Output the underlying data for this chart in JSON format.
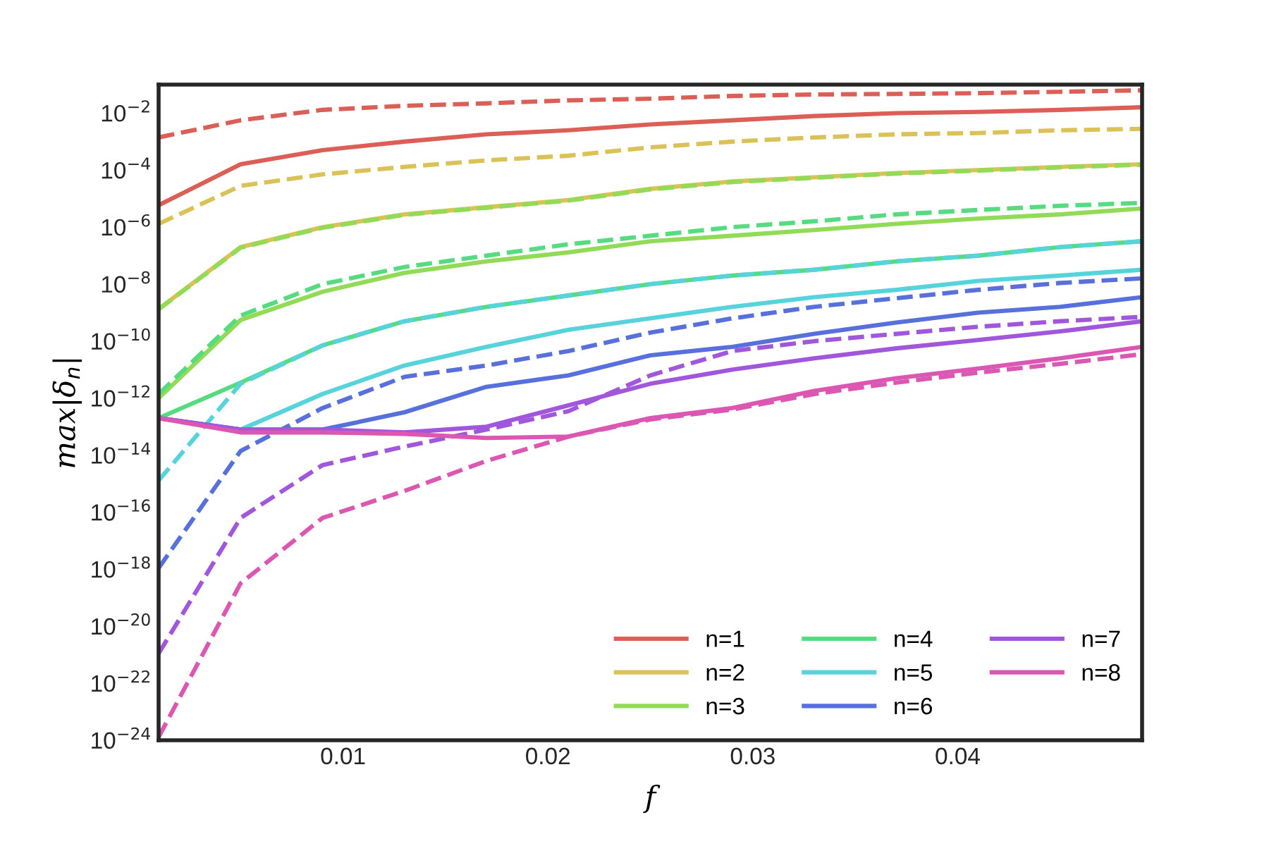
{
  "chart_data": {
    "type": "line",
    "xlabel": "f",
    "ylabel": "max|δ$_{n}$|",
    "log": "y",
    "xlim": [
      0.001,
      0.049
    ],
    "ylim": [
      1e-24,
      0.1
    ],
    "xticks": [
      0.01,
      0.02,
      0.03,
      0.04
    ],
    "yticks": [
      {
        "value": 1e-24,
        "label": "10$^{−24}$"
      },
      {
        "value": 1e-22,
        "label": "10$^{−22}$"
      },
      {
        "value": 1e-20,
        "label": "10$^{−20}$"
      },
      {
        "value": 1e-18,
        "label": "10$^{−18}$"
      },
      {
        "value": 1e-16,
        "label": "10$^{−16}$"
      },
      {
        "value": 1e-14,
        "label": "10$^{−14}$"
      },
      {
        "value": 1e-12,
        "label": "10$^{−12}$"
      },
      {
        "value": 1e-10,
        "label": "10$^{−10}$"
      },
      {
        "value": 1e-08,
        "label": "10$^{−8}$"
      },
      {
        "value": 1e-06,
        "label": "10$^{−6}$"
      },
      {
        "value": 0.0001,
        "label": "10$^{−4}$"
      },
      {
        "value": 0.01,
        "label": "10$^{−2}$"
      }
    ],
    "x": [
      0.001,
      0.005,
      0.009,
      0.013,
      0.017,
      0.021,
      0.025,
      0.029,
      0.033,
      0.037,
      0.041,
      0.045,
      0.049
    ],
    "grid": false,
    "legend": "bottom right",
    "marker": "none",
    "series": [
      {
        "name": "n=1",
        "color": "#db5f57",
        "line_style": "solid",
        "values": [
          5.9e-06,
          0.00016,
          0.0005,
          0.001,
          0.0018,
          0.0025,
          0.004,
          0.0056,
          0.0079,
          0.01,
          0.011,
          0.013,
          0.016
        ]
      },
      {
        "color": "#db5f57",
        "line_style": "dashed",
        "values": [
          0.0014,
          0.0056,
          0.013,
          0.018,
          0.022,
          0.028,
          0.032,
          0.04,
          0.045,
          0.047,
          0.05,
          0.056,
          0.063
        ]
      },
      {
        "name": "n=2",
        "color": "#dbc257",
        "line_style": "solid",
        "values": [
          1.35e-09,
          2e-07,
          1e-06,
          2.8e-06,
          5e-06,
          8.9e-06,
          2.2e-05,
          4e-05,
          5.6e-05,
          7.9e-05,
          0.0001,
          0.00013,
          0.00016
        ]
      },
      {
        "color": "#dbc257",
        "line_style": "dashed",
        "values": [
          1.3e-06,
          2.8e-05,
          7.1e-05,
          0.00013,
          0.00022,
          0.00032,
          0.00063,
          0.001,
          0.0014,
          0.0018,
          0.002,
          0.0025,
          0.0028
        ]
      },
      {
        "name": "n=3",
        "color": "#91db57",
        "line_style": "solid",
        "values": [
          1e-12,
          5.5e-10,
          5.4e-09,
          2.5e-08,
          6.3e-08,
          1.3e-07,
          3.2e-07,
          5e-07,
          7.9e-07,
          1.3e-06,
          2e-06,
          2.8e-06,
          4.5e-06
        ]
      },
      {
        "color": "#91db57",
        "line_style": "dashed",
        "values": [
          1.3e-09,
          1.9e-07,
          9.5e-07,
          2.7e-06,
          4.8e-06,
          8.5e-06,
          2.1e-05,
          3.8e-05,
          5.4e-05,
          7.6e-05,
          9.6e-05,
          0.000125,
          0.000155
        ]
      },
      {
        "name": "n=4",
        "color": "#57db80",
        "line_style": "solid",
        "values": [
          2e-13,
          3.5e-12,
          7.1e-11,
          5e-10,
          1.6e-09,
          4e-09,
          1e-08,
          2e-08,
          3.2e-08,
          6.3e-08,
          1e-07,
          2e-07,
          3.2e-07
        ]
      },
      {
        "color": "#57db80",
        "line_style": "dashed",
        "values": [
          1.4e-12,
          7.9e-10,
          1e-08,
          4e-08,
          1e-07,
          2.5e-07,
          5e-07,
          1e-06,
          1.6e-06,
          2.8e-06,
          4e-06,
          5.6e-06,
          7.1e-06
        ]
      },
      {
        "name": "n=5",
        "color": "#57d3db",
        "line_style": "solid",
        "values": [
          2e-13,
          7.9e-14,
          1.4e-12,
          1.4e-11,
          6.3e-11,
          2.5e-10,
          6.3e-10,
          1.6e-09,
          3.5e-09,
          6.3e-09,
          1.3e-08,
          2e-08,
          3.2e-08
        ]
      },
      {
        "color": "#57d3db",
        "line_style": "dashed",
        "values": [
          1.3e-15,
          3.2e-12,
          7.1e-11,
          5e-10,
          1.6e-09,
          4e-09,
          1e-08,
          2e-08,
          3.2e-08,
          6.3e-08,
          1e-07,
          2e-07,
          3.2e-07
        ]
      },
      {
        "name": "n=6",
        "color": "#5770db",
        "line_style": "solid",
        "values": [
          2e-13,
          7.9e-14,
          7.9e-14,
          3.2e-13,
          2.5e-12,
          6.3e-12,
          3.2e-11,
          6.3e-11,
          1.8e-10,
          4.5e-10,
          1e-09,
          1.6e-09,
          3.5e-09
        ]
      },
      {
        "color": "#5770db",
        "line_style": "dashed",
        "values": [
          1.1e-18,
          1.4e-14,
          4.5e-13,
          5.6e-12,
          1.4e-11,
          4.5e-11,
          2e-10,
          6.3e-10,
          1.6e-09,
          3.2e-09,
          6.3e-09,
          1.1e-08,
          1.6e-08
        ]
      },
      {
        "name": "n=7",
        "color": "#a157db",
        "line_style": "solid",
        "values": [
          2e-13,
          7.9e-14,
          7.9e-14,
          6.3e-14,
          1e-13,
          5.6e-13,
          3.2e-12,
          1e-11,
          2.5e-11,
          5.6e-11,
          1.1e-10,
          2.2e-10,
          5e-10
        ]
      },
      {
        "color": "#a157db",
        "line_style": "dashed",
        "values": [
          1.1e-21,
          6.3e-17,
          4.5e-15,
          2e-14,
          7.9e-14,
          3.5e-13,
          6.3e-12,
          4.5e-11,
          1e-10,
          1.8e-10,
          3.2e-10,
          5e-10,
          7.1e-10
        ]
      },
      {
        "name": "n=8",
        "color": "#db57b2",
        "line_style": "solid",
        "values": [
          2e-13,
          6.3e-14,
          6.3e-14,
          5.6e-14,
          4e-14,
          4.5e-14,
          2e-13,
          4.5e-13,
          1.8e-12,
          5e-12,
          1.1e-11,
          2.5e-11,
          6.3e-11
        ]
      },
      {
        "color": "#db57b2",
        "line_style": "dashed",
        "values": [
          1.3e-24,
          3.2e-19,
          6.3e-17,
          5.6e-16,
          6.3e-15,
          4.5e-14,
          1.8e-13,
          4e-13,
          1.4e-12,
          3.5e-12,
          7.9e-12,
          1.6e-11,
          3.5e-11
        ]
      }
    ]
  }
}
